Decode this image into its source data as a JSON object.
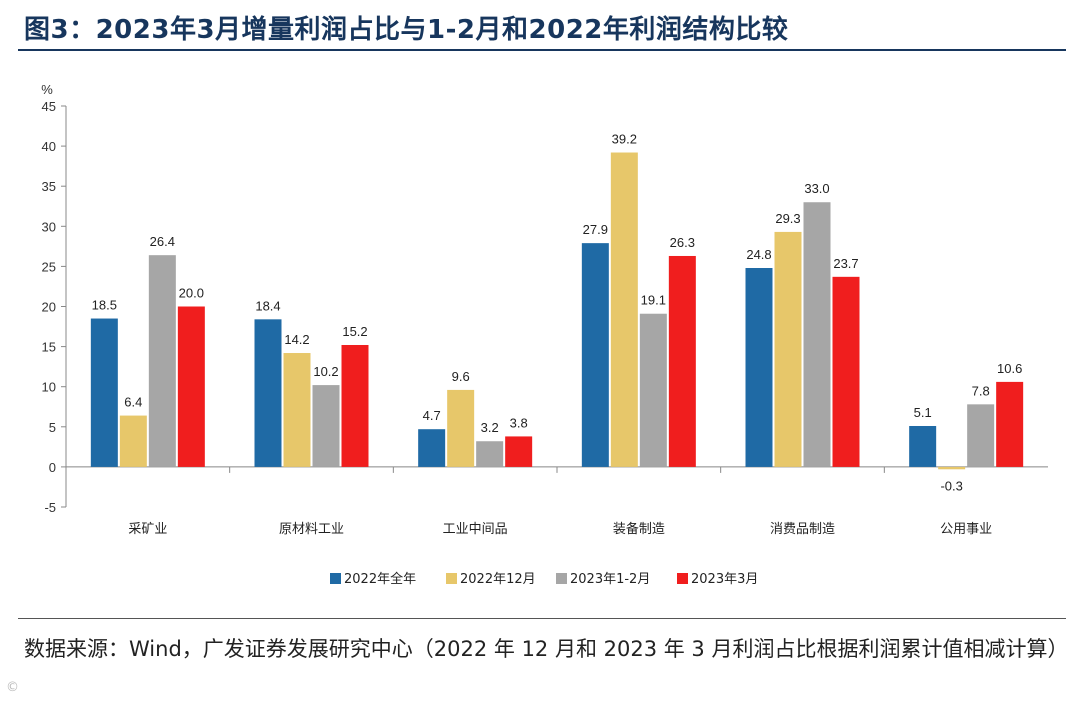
{
  "title": "图3：2023年3月增量利润占比与1-2月和2022年利润结构比较",
  "source": "数据来源：Wind，广发证券发展研究中心（2022 年 12 月和 2023 年 3 月利润占比根据利润累计值相减计算）",
  "watermark": "©",
  "colors": {
    "title": "#17365d",
    "series": [
      "#1f6aa5",
      "#e7c76a",
      "#a6a6a6",
      "#f01e1e"
    ]
  },
  "chart_data": {
    "type": "bar",
    "ylabel": "%",
    "ylim": [
      -5,
      45
    ],
    "yticks": [
      45,
      40,
      35,
      30,
      25,
      20,
      15,
      10,
      5,
      0,
      -5
    ],
    "categories": [
      "采矿业",
      "原材料工业",
      "工业中间品",
      "装备制造",
      "消费品制造",
      "公用事业"
    ],
    "series": [
      {
        "name": "2022年全年",
        "values": [
          18.5,
          18.4,
          4.7,
          27.9,
          24.8,
          5.1
        ],
        "labels": [
          "18.5",
          "18.4",
          "4.7",
          "27.9",
          "24.8",
          "5.1"
        ]
      },
      {
        "name": "2022年12月",
        "values": [
          6.4,
          14.2,
          9.6,
          39.2,
          29.3,
          -0.3
        ],
        "labels": [
          "6.4",
          "14.2",
          "9.6",
          "39.2",
          "29.3",
          "-0.3"
        ]
      },
      {
        "name": "2023年1-2月",
        "values": [
          26.4,
          10.2,
          3.2,
          19.1,
          33.0,
          7.8
        ],
        "labels": [
          "26.4",
          "10.2",
          "3.2",
          "19.1",
          "33.0",
          "7.8"
        ]
      },
      {
        "name": "2023年3月",
        "values": [
          20.0,
          15.2,
          3.8,
          26.3,
          23.7,
          10.6
        ],
        "labels": [
          "20.0",
          "15.2",
          "3.8",
          "26.3",
          "23.7",
          "10.6"
        ]
      }
    ],
    "legend_position": "bottom"
  }
}
